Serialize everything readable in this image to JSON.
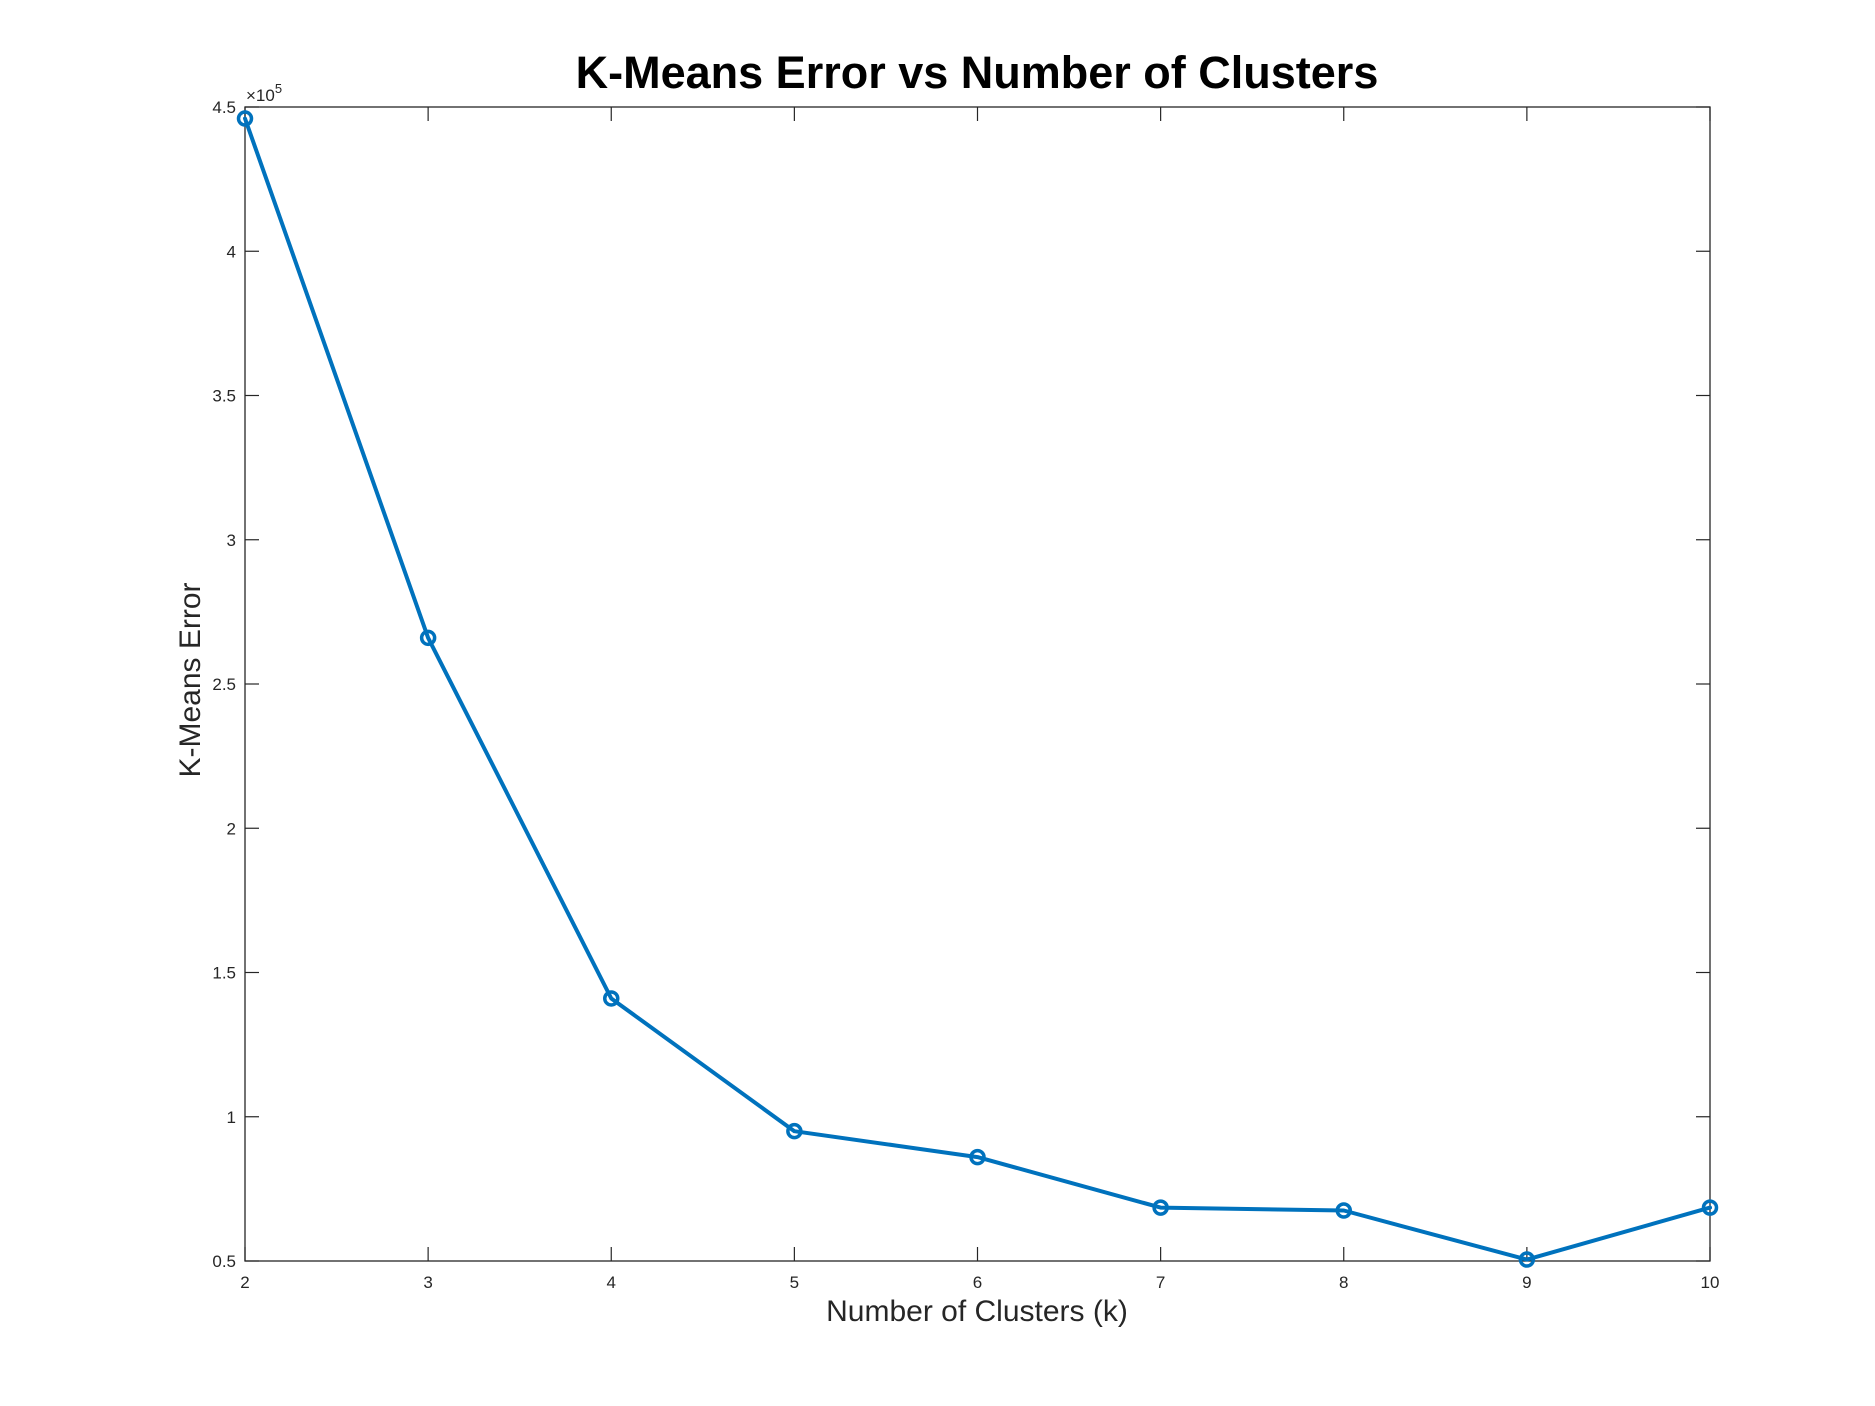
{
  "chart_data": {
    "type": "line",
    "title": "K-Means Error vs Number of Clusters",
    "xlabel": "Number of Clusters (k)",
    "ylabel": "K-Means Error",
    "x": [
      2,
      3,
      4,
      5,
      6,
      7,
      8,
      9,
      10
    ],
    "series": [
      {
        "values": [
          446000,
          266000,
          141000,
          95000,
          86000,
          68500,
          67500,
          50500,
          68500
        ],
        "color": "#0072BD",
        "marker": "circle"
      }
    ],
    "xlim": [
      2,
      10
    ],
    "ylim": [
      50000,
      450000
    ],
    "xticks": [
      2,
      3,
      4,
      5,
      6,
      7,
      8,
      9,
      10
    ],
    "yticks": [
      50000,
      100000,
      150000,
      200000,
      250000,
      300000,
      350000,
      400000,
      450000
    ],
    "ytick_labels": [
      "0.5",
      "1",
      "1.5",
      "2",
      "2.5",
      "3",
      "3.5",
      "4",
      "4.5"
    ],
    "y_exponent_base": "×10",
    "y_exponent_power": "5",
    "grid": false,
    "box": true
  }
}
